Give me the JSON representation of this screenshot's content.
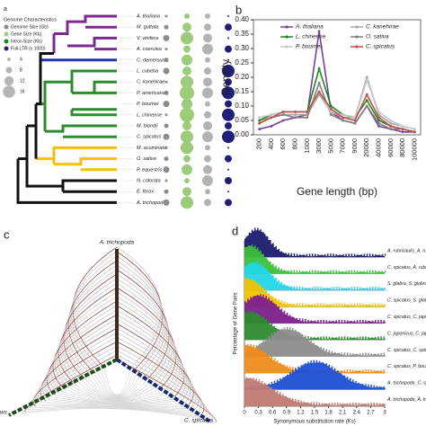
{
  "panels": [
    "a",
    "b",
    "c",
    "d"
  ],
  "tree": {
    "legend_title": "Genome Characteristics",
    "legend_items": [
      "Genome Size (Gb)",
      "Gene Size (Kb)",
      "Intron Size (Kb)",
      "Full-LTR (x 1000)"
    ],
    "sizes": [
      "4",
      "8",
      "12",
      "16"
    ],
    "species": [
      "A. thaliana",
      "M. guttata",
      "V. vinifera",
      "A. coerulea",
      "C. demersum",
      "L. cubeba",
      "C. kanehirae",
      "P. americana",
      "P. bournei",
      "L. chinense",
      "M. biondii",
      "C. spicatus",
      "M. acuminata",
      "O. sativa",
      "P. equestris",
      "N. colorata",
      "E. ferox",
      "A. trichopoda"
    ]
  },
  "synteny": {
    "top": "A. trichopoda",
    "right": "C. spicatus",
    "left": "ws"
  },
  "ks": {
    "xlabel": "Synonymous substitution rate (Ks)",
    "ylabel": "Percentage of Gene Pairs",
    "xlim": [
      0,
      3
    ],
    "xticks": [
      0,
      0.3,
      0.6,
      0.9,
      1.2,
      1.5,
      1.8,
      2.1,
      2.4,
      2.7,
      3
    ],
    "pairs": [
      "A. rubricaulis_A. rubricaulis",
      "C. spicatus_A. rubricaulis",
      "S. glabra_S. glabra",
      "C. spicatus_S. glabra",
      "C. spicatus_C. japonicus",
      "C. japonicus_C. japonicus",
      "C. spicatus_C. spicatus",
      "C. spicatus_P. bournei",
      "A. trichopoda_C. spicatus",
      "A. trichopoda_A. trichopoda"
    ]
  },
  "chart_data": {
    "type": "line",
    "ylabel": "Density",
    "xlabel": "Gene length (bp)",
    "categories": [
      "200",
      "400",
      "600",
      "800",
      "1000",
      "3000",
      "5000",
      "7000",
      "9000",
      "20000",
      "40000",
      "60000",
      "80000",
      "100000"
    ],
    "ylim": [
      0,
      0.4
    ],
    "yticks": [
      {
        "value": 0,
        "label": "0.00"
      },
      {
        "value": 0.05,
        "label": "0.05"
      },
      {
        "value": 0.1,
        "label": "0.10"
      },
      {
        "value": 0.15,
        "label": "0.15"
      },
      {
        "value": 0.2,
        "label": "0.20"
      },
      {
        "value": 0.25,
        "label": "0.25"
      },
      {
        "value": 0.3,
        "label": "0.30"
      },
      {
        "value": 0.35,
        "label": "0.35"
      },
      {
        "value": 0.4,
        "label": "0.40"
      }
    ],
    "series": [
      {
        "name": "A. thaliana",
        "color": "#7b3f99",
        "values": [
          0.02,
          0.03,
          0.05,
          0.06,
          0.07,
          0.36,
          0.08,
          0.05,
          0.04,
          0.1,
          0.03,
          0.02,
          0.01,
          0.01
        ]
      },
      {
        "name": "C. kanehirae",
        "color": "#a6a6a6",
        "values": [
          0.05,
          0.06,
          0.07,
          0.07,
          0.07,
          0.14,
          0.08,
          0.06,
          0.06,
          0.2,
          0.07,
          0.04,
          0.03,
          0.02
        ]
      },
      {
        "name": "L. chinense",
        "color": "#1a8a1a",
        "values": [
          0.05,
          0.07,
          0.08,
          0.08,
          0.08,
          0.23,
          0.1,
          0.07,
          0.06,
          0.12,
          0.05,
          0.03,
          0.02,
          0.01
        ]
      },
      {
        "name": "O. sativa",
        "color": "#7f7f7f",
        "values": [
          0.04,
          0.06,
          0.07,
          0.06,
          0.06,
          0.18,
          0.07,
          0.05,
          0.04,
          0.1,
          0.04,
          0.02,
          0.02,
          0.01
        ]
      },
      {
        "name": "P. bournei",
        "color": "#c8c8c8",
        "values": [
          0.06,
          0.07,
          0.08,
          0.08,
          0.08,
          0.15,
          0.08,
          0.07,
          0.06,
          0.19,
          0.08,
          0.05,
          0.03,
          0.02
        ]
      },
      {
        "name": "C. spicatus",
        "color": "#c0504d",
        "values": [
          0.04,
          0.06,
          0.08,
          0.08,
          0.08,
          0.15,
          0.09,
          0.06,
          0.05,
          0.14,
          0.06,
          0.03,
          0.02,
          0.01
        ]
      }
    ]
  }
}
